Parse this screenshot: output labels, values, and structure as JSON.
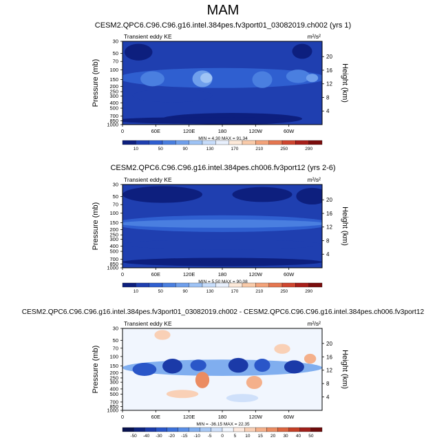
{
  "page": {
    "title": "MAM"
  },
  "colors": {
    "cb1": [
      "#0d1f7e",
      "#1f3fb0",
      "#2f5fd0",
      "#4a7fe0",
      "#6f9fec",
      "#9ec3f5",
      "#c7ddfb",
      "#e8f0fd",
      "#fde9d9",
      "#f9cbaa",
      "#f3a37a",
      "#e57650",
      "#cf4630",
      "#a81f1a",
      "#7a0d0d"
    ],
    "cb2": [
      "#08124f",
      "#0d237e",
      "#1b3aa8",
      "#2a56c8",
      "#3d71da",
      "#5a8ee6",
      "#80aeef",
      "#a8c8f5",
      "#cfe0fa",
      "#f1f6fe",
      "#fdeadf",
      "#f9d0b6",
      "#f4b08b",
      "#eb8c62",
      "#dc653f",
      "#c43f26",
      "#a0201a",
      "#6e0c0c"
    ]
  },
  "chart_data": [
    {
      "type": "heatmap",
      "title": "CESM2.QPC6.C96.C96.g16.intel.384pes.fv3port01_03082019.ch002 (yrs 1)",
      "subtitle_left": "Transient eddy KE",
      "units": "m²/s²",
      "ylabel": "Pressure (mb)",
      "ylabel_right": "Height (km)",
      "y_ticks": [
        "30",
        "50",
        "70",
        "100",
        "150",
        "200",
        "250",
        "300",
        "400",
        "500",
        "700",
        "850",
        "1000"
      ],
      "y_ticks_right": [
        "20",
        "16",
        "12",
        "8",
        "4"
      ],
      "x_ticks": [
        "0",
        "60E",
        "120E",
        "180",
        "120W",
        "60W"
      ],
      "minmax_text": "MIN =   4.30  MAX =  91.34",
      "colorbar_labels": [
        "10",
        "50",
        "90",
        "130",
        "170",
        "210",
        "250",
        "290"
      ],
      "colorbar_scheme": "cb1",
      "style": "yr1"
    },
    {
      "type": "heatmap",
      "title": "CESM2.QPC6.C96.C96.g16.intel.384pes.ch006.fv3port12 (yrs 2-6)",
      "subtitle_left": "Transient eddy KE",
      "units": "m²/s²",
      "ylabel": "Pressure (mb)",
      "ylabel_right": "Height (km)",
      "y_ticks": [
        "30",
        "50",
        "70",
        "100",
        "150",
        "200",
        "250",
        "300",
        "400",
        "500",
        "700",
        "850",
        "1000"
      ],
      "y_ticks_right": [
        "20",
        "16",
        "12",
        "8",
        "4"
      ],
      "x_ticks": [
        "0",
        "60E",
        "120E",
        "180",
        "120W",
        "60W"
      ],
      "minmax_text": "MIN =   5.50  MAX =  90.08",
      "colorbar_labels": [
        "10",
        "50",
        "90",
        "130",
        "170",
        "210",
        "250",
        "290"
      ],
      "colorbar_scheme": "cb1",
      "style": "yr26"
    },
    {
      "type": "heatmap",
      "title": "CESM2.QPC6.C96.C96.g16.intel.384pes.fv3port01_03082019.ch002 - CESM2.QPC6.C96.C96.g16.intel.384pes.ch006.fv3port12",
      "subtitle_left": "Transient eddy KE",
      "units": "m²/s²",
      "ylabel": "Pressure (mb)",
      "ylabel_right": "Height (km)",
      "y_ticks": [
        "30",
        "50",
        "70",
        "100",
        "150",
        "200",
        "250",
        "300",
        "400",
        "500",
        "700",
        "850",
        "1000"
      ],
      "y_ticks_right": [
        "20",
        "16",
        "12",
        "8",
        "4"
      ],
      "x_ticks": [
        "0",
        "60E",
        "120E",
        "180",
        "120W",
        "60W"
      ],
      "minmax_text": "MIN = -36.15  MAX =  22.35",
      "colorbar_labels": [
        "-50",
        "-40",
        "-30",
        "-20",
        "-15",
        "-10",
        "-5",
        "0",
        "5",
        "10",
        "15",
        "20",
        "30",
        "40",
        "50"
      ],
      "colorbar_scheme": "cb2",
      "style": "diff"
    }
  ]
}
